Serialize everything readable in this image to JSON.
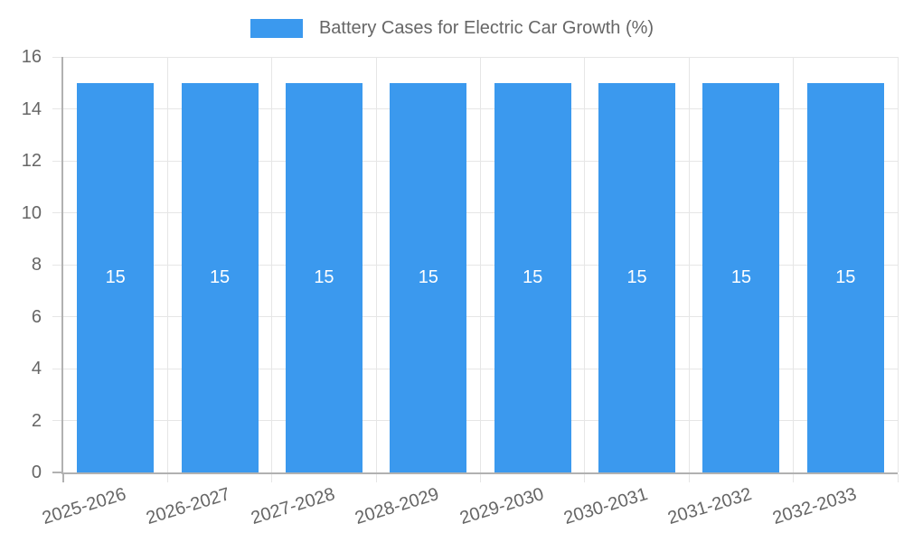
{
  "chart_data": {
    "type": "bar",
    "series_name": "Battery Cases for Electric Car Growth (%)",
    "legend_position": "top",
    "categories": [
      "2025-2026",
      "2026-2027",
      "2027-2028",
      "2028-2029",
      "2029-2030",
      "2030-2031",
      "2031-2032",
      "2032-2033"
    ],
    "values": [
      15,
      15,
      15,
      15,
      15,
      15,
      15,
      15
    ],
    "ylim": [
      0,
      16
    ],
    "yticks": [
      0,
      2,
      4,
      6,
      8,
      10,
      12,
      14,
      16
    ],
    "grid": true,
    "bar_labels_visible": true,
    "xlabel": "",
    "ylabel": "",
    "colors": {
      "bar": "#3B99EE",
      "bar_label": "#FFFFFF",
      "grid": "#E6E6E6",
      "axis": "#B1B1B1",
      "text": "#666666",
      "background": "#FFFFFF"
    }
  }
}
